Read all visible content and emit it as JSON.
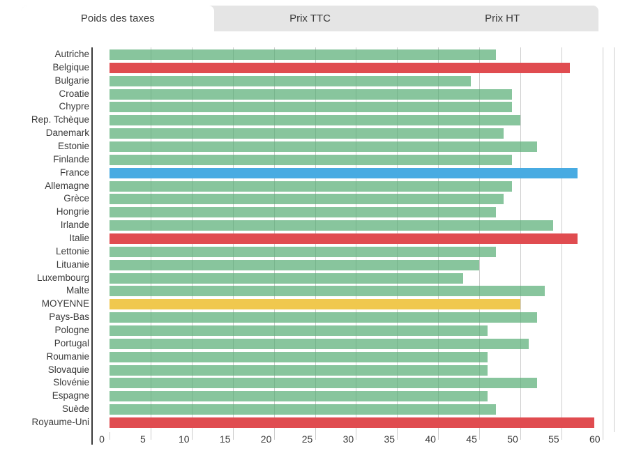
{
  "tabs": [
    {
      "label": "Poids des taxes",
      "active": true
    },
    {
      "label": "Prix TTC",
      "active": false
    },
    {
      "label": "Prix HT",
      "active": false
    }
  ],
  "chart_data": {
    "type": "bar",
    "orientation": "horizontal",
    "categories": [
      "Autriche",
      "Belgique",
      "Bulgarie",
      "Croatie",
      "Chypre",
      "Rep. Tchèque",
      "Danemark",
      "Estonie",
      "Finlande",
      "France",
      "Allemagne",
      "Grèce",
      "Hongrie",
      "Irlande",
      "Italie",
      "Lettonie",
      "Lituanie",
      "Luxembourg",
      "Malte",
      "MOYENNE",
      "Pays-Bas",
      "Pologne",
      "Portugal",
      "Roumanie",
      "Slovaquie",
      "Slovénie",
      "Espagne",
      "Suède",
      "Royaume-Uni"
    ],
    "values": [
      47,
      56,
      44,
      49,
      49,
      50,
      48,
      52,
      49,
      57,
      49,
      48,
      47,
      54,
      57,
      47,
      45,
      43,
      53,
      50,
      52,
      46,
      51,
      46,
      46,
      52,
      46,
      47,
      59
    ],
    "x_ticks": [
      0,
      5,
      10,
      15,
      20,
      25,
      30,
      35,
      40,
      45,
      50,
      55,
      60
    ],
    "xlim": [
      0,
      61.4
    ],
    "grid": true,
    "legend": "none",
    "title": "",
    "xlabel": "",
    "ylabel": "",
    "default_bar_color": "rgba(80,170,110,0.68)",
    "point_colors": {
      "Belgique": "#e04c50",
      "France": "#48abe2",
      "Italie": "#e04c50",
      "MOYENNE": "#f0c84e",
      "Royaume-Uni": "#e04c50"
    },
    "accent_colors": {
      "green": "#8ec49e",
      "red": "#e04c50",
      "blue": "#48abe2",
      "yellow": "#f0c84e"
    },
    "gridline_color": "#cccccc",
    "axis_color": "#3a3a3a",
    "label_color": "#3a3a3a",
    "tab_inactive_bg": "#e5e5e5",
    "tab_active_bg": "#ffffff"
  }
}
